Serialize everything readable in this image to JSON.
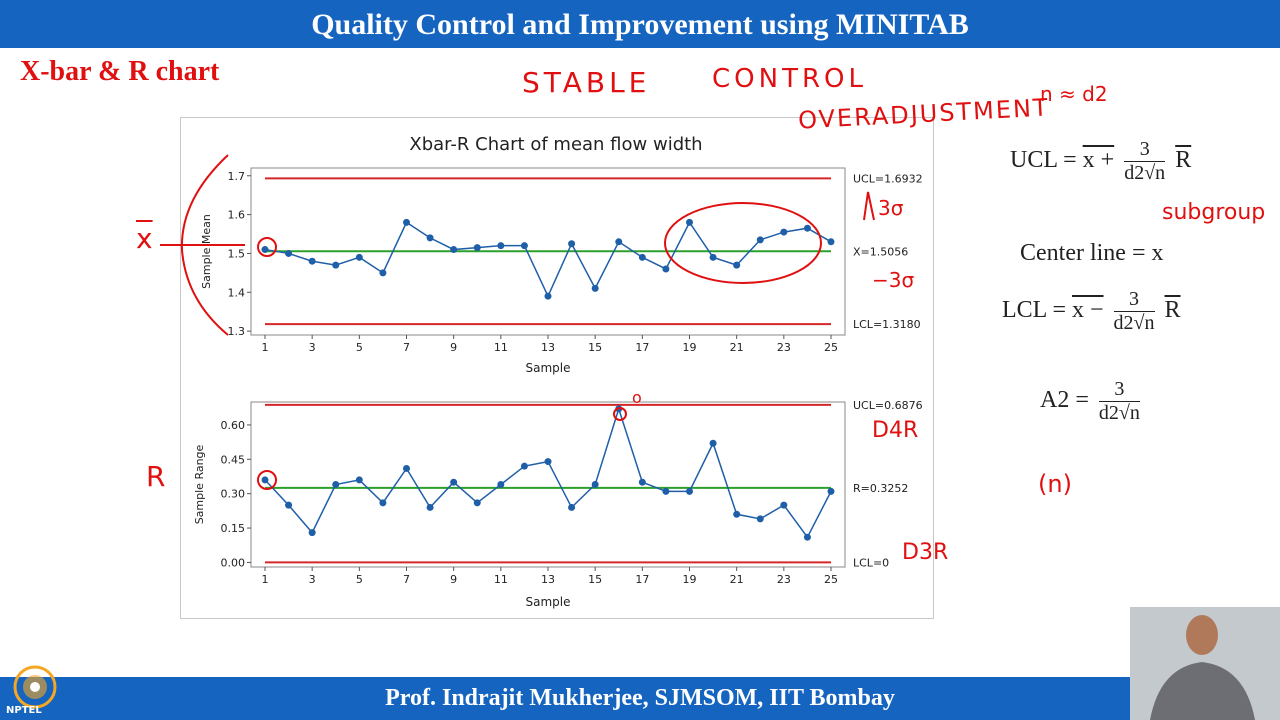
{
  "header": {
    "title": "Quality Control and Improvement using MINITAB"
  },
  "slide": {
    "title": "X-bar & R chart"
  },
  "footer": {
    "text": "Prof. Indrajit Mukherjee, SJMSOM, IIT Bombay"
  },
  "logo": {
    "label": "NPTEL"
  },
  "colors": {
    "bar": "#1565c0",
    "title_red": "#e01010",
    "series": "#1f5fa8",
    "limit": "#d62728",
    "center": "#2ca02c"
  },
  "chart_data": [
    {
      "type": "line",
      "title": "Xbar-R Chart of mean flow width",
      "xlabel": "Sample",
      "ylabel": "Sample Mean",
      "x": [
        1,
        2,
        3,
        4,
        5,
        6,
        7,
        8,
        9,
        10,
        11,
        12,
        13,
        14,
        15,
        16,
        17,
        18,
        19,
        20,
        21,
        22,
        23,
        24,
        25
      ],
      "x_ticks": [
        "1",
        "3",
        "5",
        "7",
        "9",
        "11",
        "13",
        "15",
        "17",
        "19",
        "21",
        "23",
        "25"
      ],
      "y_ticks": [
        "1.3",
        "1.4",
        "1.5",
        "1.6",
        "1.7"
      ],
      "ylim": [
        1.29,
        1.72
      ],
      "series": [
        {
          "values": [
            1.51,
            1.5,
            1.48,
            1.47,
            1.49,
            1.45,
            1.58,
            1.54,
            1.51,
            1.515,
            1.52,
            1.52,
            1.39,
            1.525,
            1.41,
            1.53,
            1.49,
            1.46,
            1.58,
            1.49,
            1.47,
            1.535,
            1.555,
            1.565,
            1.53
          ]
        }
      ],
      "ucl": 1.6932,
      "center": 1.5056,
      "lcl": 1.318,
      "ucl_label": "UCL=1.6932",
      "center_label": "X=1.5056",
      "lcl_label": "LCL=1.3180"
    },
    {
      "type": "line",
      "xlabel": "Sample",
      "ylabel": "Sample Range",
      "x": [
        1,
        2,
        3,
        4,
        5,
        6,
        7,
        8,
        9,
        10,
        11,
        12,
        13,
        14,
        15,
        16,
        17,
        18,
        19,
        20,
        21,
        22,
        23,
        24,
        25
      ],
      "x_ticks": [
        "1",
        "3",
        "5",
        "7",
        "9",
        "11",
        "13",
        "15",
        "17",
        "19",
        "21",
        "23",
        "25"
      ],
      "y_ticks": [
        "0.00",
        "0.15",
        "0.30",
        "0.45",
        "0.60"
      ],
      "ylim": [
        -0.02,
        0.7
      ],
      "series": [
        {
          "values": [
            0.36,
            0.25,
            0.13,
            0.34,
            0.36,
            0.26,
            0.41,
            0.24,
            0.35,
            0.26,
            0.34,
            0.42,
            0.44,
            0.24,
            0.34,
            0.67,
            0.35,
            0.31,
            0.31,
            0.52,
            0.21,
            0.19,
            0.25,
            0.11,
            0.31
          ]
        }
      ],
      "ucl": 0.6876,
      "center": 0.3252,
      "lcl": 0,
      "ucl_label": "UCL=0.6876",
      "center_label": "R=0.3252",
      "lcl_label": "LCL=0"
    }
  ],
  "formulas": {
    "ucl_lhs": "UCL =",
    "ucl_mid": "x +",
    "ucl_num": "3",
    "ucl_den": "d2√n",
    "ucl_tail": "R",
    "center": "Center line = x",
    "lcl_lhs": "LCL =",
    "lcl_mid": "x −",
    "lcl_num": "3",
    "lcl_den": "d2√n",
    "lcl_tail": "R",
    "a2_lhs": "A2 =",
    "a2_num": "3",
    "a2_den": "d2√n"
  },
  "annotations": {
    "stable": "STABLE",
    "control": "CONTROL",
    "overadjustment": "OVERADJUSTMENT",
    "n_d2": "n ≈ d2",
    "subgroup": "subgroup",
    "plus3s": "3σ",
    "minus3s": "−3σ",
    "xbar": "x",
    "r": "R",
    "d4r": "D4R",
    "d3r": "D3R",
    "n_paren": "(n)",
    "zero": "o"
  }
}
